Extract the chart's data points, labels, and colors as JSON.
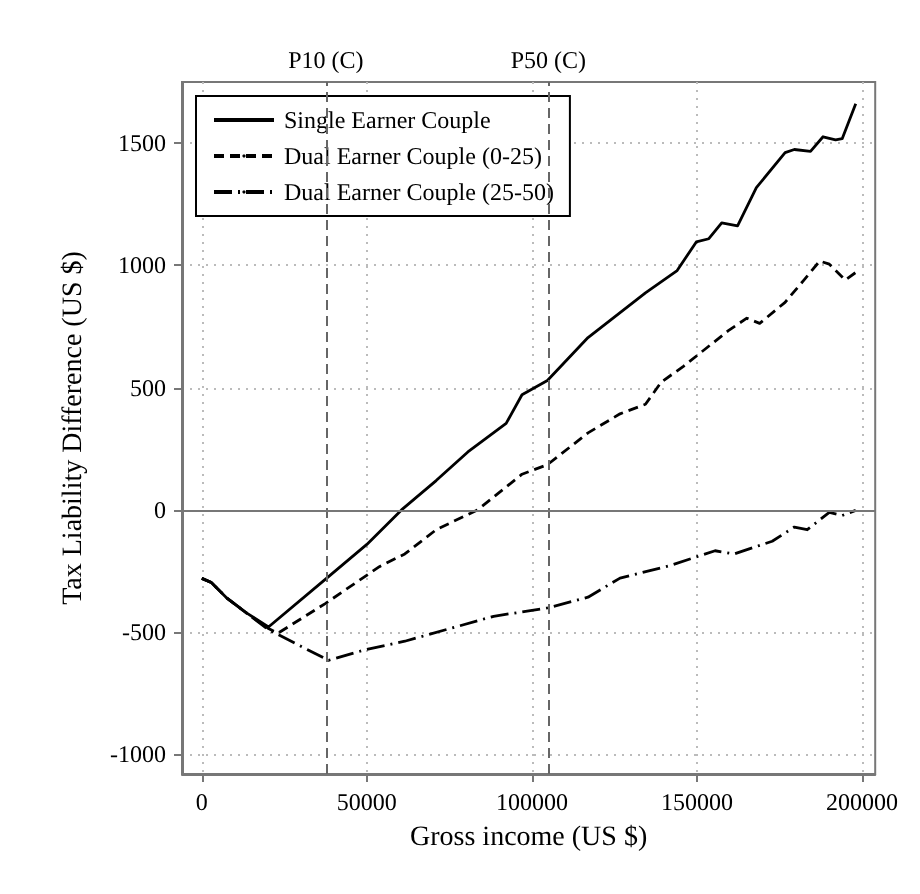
{
  "chart_data": {
    "type": "line",
    "xlabel": "Gross income (US $)",
    "ylabel": "Tax Liability Difference (US $)",
    "xlim": [
      -6000,
      204000
    ],
    "xticks": [
      0,
      50000,
      100000,
      150000,
      200000
    ],
    "ylim": [
      -1080,
      1750
    ],
    "yticks": [
      -1000,
      -500,
      0,
      500,
      1000,
      1500
    ],
    "grid": true,
    "legend": "top left",
    "marker": "none",
    "series": [
      {
        "name": "Single Earner Couple",
        "color": "#000000",
        "line_style": "solid",
        "x": [
          0,
          2900,
          7700,
          13400,
          20200,
          37400,
          50000,
          60500,
          71000,
          80600,
          92200,
          97000,
          104700,
          117000,
          134400,
          144000,
          149800,
          153600,
          157500,
          162300,
          168000,
          176700,
          179500,
          184400,
          188200,
          192000,
          194000,
          198100
        ],
        "values": [
          -280,
          -297,
          -362,
          -420,
          -479,
          -284,
          -141,
          0,
          120,
          237,
          354,
          471,
          529,
          705,
          888,
          979,
          1096,
          1109,
          1174,
          1162,
          1318,
          1461,
          1474,
          1466,
          1526,
          1513,
          1518,
          1661
        ]
      },
      {
        "name": "Dual Earner Couple (0-25)",
        "color": "#000000",
        "line_style": "dashed",
        "x": [
          0,
          2900,
          7700,
          13400,
          20200,
          23000,
          37400,
          53800,
          61500,
          71000,
          83500,
          97000,
          104700,
          117000,
          126700,
          134400,
          139200,
          146000,
          159400,
          165100,
          169000,
          176700,
          182400,
          187200,
          190100,
          194900,
          198100
        ],
        "values": [
          -280,
          -297,
          -362,
          -420,
          -485,
          -505,
          -383,
          -232,
          -180,
          -81,
          0,
          146,
          185,
          315,
          393,
          432,
          523,
          588,
          732,
          784,
          763,
          849,
          940,
          1018,
          1005,
          940,
          971
        ]
      },
      {
        "name": "Dual Earner Couple (25-50)",
        "color": "#000000",
        "line_style": "dashdot",
        "x": [
          0,
          2900,
          7700,
          13400,
          20200,
          38400,
          50000,
          61500,
          76800,
          88400,
          104700,
          117000,
          126700,
          142000,
          155500,
          161300,
          172800,
          179500,
          183400,
          190100,
          194000,
          198100
        ],
        "values": [
          -280,
          -297,
          -362,
          -420,
          -490,
          -615,
          -570,
          -537,
          -479,
          -435,
          -401,
          -357,
          -279,
          -227,
          -167,
          -180,
          -128,
          -70,
          -81,
          -10,
          -23,
          -2
        ]
      }
    ],
    "ref_lines": [
      {
        "axis": "x",
        "value": 37600,
        "label": "P10 (C)",
        "color": "#666666",
        "line_style": "dashed"
      },
      {
        "axis": "x",
        "value": 105000,
        "label": "P50 (C)",
        "color": "#666666",
        "line_style": "dashed"
      },
      {
        "axis": "y",
        "value": 0,
        "color": "#777777",
        "line_style": "solid"
      }
    ]
  }
}
